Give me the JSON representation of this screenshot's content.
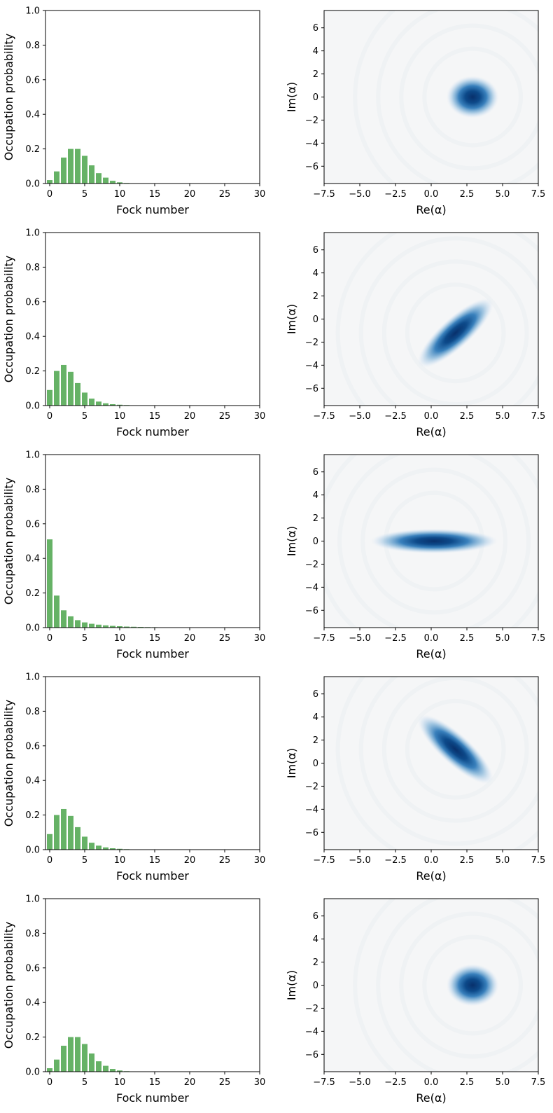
{
  "figure": {
    "background": "#ffffff"
  },
  "chart_data": [
    {
      "type": "bar",
      "row": 0,
      "panel": "fock-distribution",
      "xlabel": "Fock number",
      "ylabel": "Occupation probability",
      "xlim": [
        -0.6,
        30
      ],
      "ylim": [
        0,
        1.0
      ],
      "xticks": [
        0,
        5,
        10,
        15,
        20,
        25,
        30
      ],
      "yticks": [
        0.0,
        0.2,
        0.4,
        0.6,
        0.8,
        1.0
      ],
      "bar_color": "#66b266",
      "x": [
        0,
        1,
        2,
        3,
        4,
        5,
        6,
        7,
        8,
        9,
        10,
        11,
        12,
        13,
        14,
        15,
        16,
        17,
        18,
        19,
        20,
        21,
        22,
        23,
        24,
        25,
        26,
        27,
        28,
        29
      ],
      "values": [
        0.02,
        0.07,
        0.15,
        0.2,
        0.2,
        0.16,
        0.105,
        0.06,
        0.034,
        0.016,
        0.007,
        0.003,
        0.001,
        0.0005,
        0,
        0,
        0,
        0,
        0,
        0,
        0,
        0,
        0,
        0,
        0,
        0,
        0,
        0,
        0,
        0
      ]
    },
    {
      "type": "heatmap",
      "row": 0,
      "panel": "wigner-function",
      "xlabel": "Re(α)",
      "ylabel": "Im(α)",
      "xlim": [
        -7.5,
        7.5
      ],
      "ylim": [
        -7.5,
        7.5
      ],
      "xticks": [
        -7.5,
        -5.0,
        -2.5,
        0.0,
        2.5,
        5.0,
        7.5
      ],
      "yticks": [
        -6,
        -4,
        -2,
        0,
        2,
        4,
        6
      ],
      "colormap": "blues",
      "background_color": "#f5f6f7",
      "peak_color": "#08306b",
      "blob": {
        "center": [
          2.9,
          0.0
        ],
        "sigma_major": 0.72,
        "sigma_minor": 0.72,
        "angle_deg": 0
      }
    },
    {
      "type": "bar",
      "row": 1,
      "panel": "fock-distribution",
      "xlabel": "Fock number",
      "ylabel": "Occupation probability",
      "xlim": [
        -0.6,
        30
      ],
      "ylim": [
        0,
        1.0
      ],
      "xticks": [
        0,
        5,
        10,
        15,
        20,
        25,
        30
      ],
      "yticks": [
        0.0,
        0.2,
        0.4,
        0.6,
        0.8,
        1.0
      ],
      "bar_color": "#66b266",
      "x": [
        0,
        1,
        2,
        3,
        4,
        5,
        6,
        7,
        8,
        9,
        10,
        11,
        12,
        13,
        14,
        15,
        16,
        17,
        18,
        19,
        20,
        21,
        22,
        23,
        24,
        25,
        26,
        27,
        28,
        29
      ],
      "values": [
        0.09,
        0.2,
        0.235,
        0.195,
        0.13,
        0.075,
        0.04,
        0.023,
        0.013,
        0.008,
        0.005,
        0.003,
        0.002,
        0.001,
        0.0005,
        0,
        0,
        0,
        0,
        0,
        0,
        0,
        0,
        0,
        0,
        0,
        0,
        0,
        0,
        0
      ]
    },
    {
      "type": "heatmap",
      "row": 1,
      "panel": "wigner-function",
      "xlabel": "Re(α)",
      "ylabel": "Im(α)",
      "xlim": [
        -7.5,
        7.5
      ],
      "ylim": [
        -7.5,
        7.5
      ],
      "xticks": [
        -7.5,
        -5.0,
        -2.5,
        0.0,
        2.5,
        5.0,
        7.5
      ],
      "yticks": [
        -6,
        -4,
        -2,
        0,
        2,
        4,
        6
      ],
      "colormap": "blues",
      "background_color": "#f5f6f7",
      "peak_color": "#08306b",
      "blob": {
        "center": [
          1.7,
          -1.2
        ],
        "sigma_major": 1.35,
        "sigma_minor": 0.52,
        "angle_deg": 42
      }
    },
    {
      "type": "bar",
      "row": 2,
      "panel": "fock-distribution",
      "xlabel": "Fock number",
      "ylabel": "Occupation probability",
      "xlim": [
        -0.6,
        30
      ],
      "ylim": [
        0,
        1.0
      ],
      "xticks": [
        0,
        5,
        10,
        15,
        20,
        25,
        30
      ],
      "yticks": [
        0.0,
        0.2,
        0.4,
        0.6,
        0.8,
        1.0
      ],
      "bar_color": "#66b266",
      "x": [
        0,
        1,
        2,
        3,
        4,
        5,
        6,
        7,
        8,
        9,
        10,
        11,
        12,
        13,
        14,
        15,
        16,
        17,
        18,
        19,
        20,
        21,
        22,
        23,
        24,
        25,
        26,
        27,
        28,
        29
      ],
      "values": [
        0.51,
        0.185,
        0.1,
        0.065,
        0.043,
        0.03,
        0.022,
        0.017,
        0.013,
        0.01,
        0.008,
        0.006,
        0.005,
        0.004,
        0.003,
        0.0025,
        0.002,
        0.0015,
        0.001,
        0.0008,
        0.0006,
        0.0004,
        0.0003,
        0.0002,
        0.0001,
        0,
        0,
        0,
        0,
        0
      ]
    },
    {
      "type": "heatmap",
      "row": 2,
      "panel": "wigner-function",
      "xlabel": "Re(α)",
      "ylabel": "Im(α)",
      "xlim": [
        -7.5,
        7.5
      ],
      "ylim": [
        -7.5,
        7.5
      ],
      "xticks": [
        -7.5,
        -5.0,
        -2.5,
        0.0,
        2.5,
        5.0,
        7.5
      ],
      "yticks": [
        -6,
        -4,
        -2,
        0,
        2,
        4,
        6
      ],
      "colormap": "blues",
      "background_color": "#f5f6f7",
      "peak_color": "#08306b",
      "blob": {
        "center": [
          0.2,
          0.0
        ],
        "sigma_major": 1.75,
        "sigma_minor": 0.42,
        "angle_deg": 0
      }
    },
    {
      "type": "bar",
      "row": 3,
      "panel": "fock-distribution",
      "xlabel": "Fock number",
      "ylabel": "Occupation probability",
      "xlim": [
        -0.6,
        30
      ],
      "ylim": [
        0,
        1.0
      ],
      "xticks": [
        0,
        5,
        10,
        15,
        20,
        25,
        30
      ],
      "yticks": [
        0.0,
        0.2,
        0.4,
        0.6,
        0.8,
        1.0
      ],
      "bar_color": "#66b266",
      "x": [
        0,
        1,
        2,
        3,
        4,
        5,
        6,
        7,
        8,
        9,
        10,
        11,
        12,
        13,
        14,
        15,
        16,
        17,
        18,
        19,
        20,
        21,
        22,
        23,
        24,
        25,
        26,
        27,
        28,
        29
      ],
      "values": [
        0.09,
        0.2,
        0.235,
        0.195,
        0.13,
        0.075,
        0.04,
        0.023,
        0.013,
        0.008,
        0.005,
        0.003,
        0.002,
        0.001,
        0.0005,
        0,
        0,
        0,
        0,
        0,
        0,
        0,
        0,
        0,
        0,
        0,
        0,
        0,
        0,
        0
      ]
    },
    {
      "type": "heatmap",
      "row": 3,
      "panel": "wigner-function",
      "xlabel": "Re(α)",
      "ylabel": "Im(α)",
      "xlim": [
        -7.5,
        7.5
      ],
      "ylim": [
        -7.5,
        7.5
      ],
      "xticks": [
        -7.5,
        -5.0,
        -2.5,
        0.0,
        2.5,
        5.0,
        7.5
      ],
      "yticks": [
        -6,
        -4,
        -2,
        0,
        2,
        4,
        6
      ],
      "colormap": "blues",
      "background_color": "#f5f6f7",
      "peak_color": "#08306b",
      "blob": {
        "center": [
          1.7,
          1.2
        ],
        "sigma_major": 1.35,
        "sigma_minor": 0.52,
        "angle_deg": -42
      }
    },
    {
      "type": "bar",
      "row": 4,
      "panel": "fock-distribution",
      "xlabel": "Fock number",
      "ylabel": "Occupation probability",
      "xlim": [
        -0.6,
        30
      ],
      "ylim": [
        0,
        1.0
      ],
      "xticks": [
        0,
        5,
        10,
        15,
        20,
        25,
        30
      ],
      "yticks": [
        0.0,
        0.2,
        0.4,
        0.6,
        0.8,
        1.0
      ],
      "bar_color": "#66b266",
      "x": [
        0,
        1,
        2,
        3,
        4,
        5,
        6,
        7,
        8,
        9,
        10,
        11,
        12,
        13,
        14,
        15,
        16,
        17,
        18,
        19,
        20,
        21,
        22,
        23,
        24,
        25,
        26,
        27,
        28,
        29
      ],
      "values": [
        0.02,
        0.07,
        0.15,
        0.2,
        0.2,
        0.16,
        0.105,
        0.06,
        0.034,
        0.016,
        0.007,
        0.003,
        0.001,
        0.0005,
        0,
        0,
        0,
        0,
        0,
        0,
        0,
        0,
        0,
        0,
        0,
        0,
        0,
        0,
        0,
        0
      ]
    },
    {
      "type": "heatmap",
      "row": 4,
      "panel": "wigner-function",
      "xlabel": "Re(α)",
      "ylabel": "Im(α)",
      "xlim": [
        -7.5,
        7.5
      ],
      "ylim": [
        -7.5,
        7.5
      ],
      "xticks": [
        -7.5,
        -5.0,
        -2.5,
        0.0,
        2.5,
        5.0,
        7.5
      ],
      "yticks": [
        -6,
        -4,
        -2,
        0,
        2,
        4,
        6
      ],
      "colormap": "blues",
      "background_color": "#f5f6f7",
      "peak_color": "#08306b",
      "blob": {
        "center": [
          2.9,
          0.0
        ],
        "sigma_major": 0.72,
        "sigma_minor": 0.72,
        "angle_deg": 0
      }
    }
  ]
}
